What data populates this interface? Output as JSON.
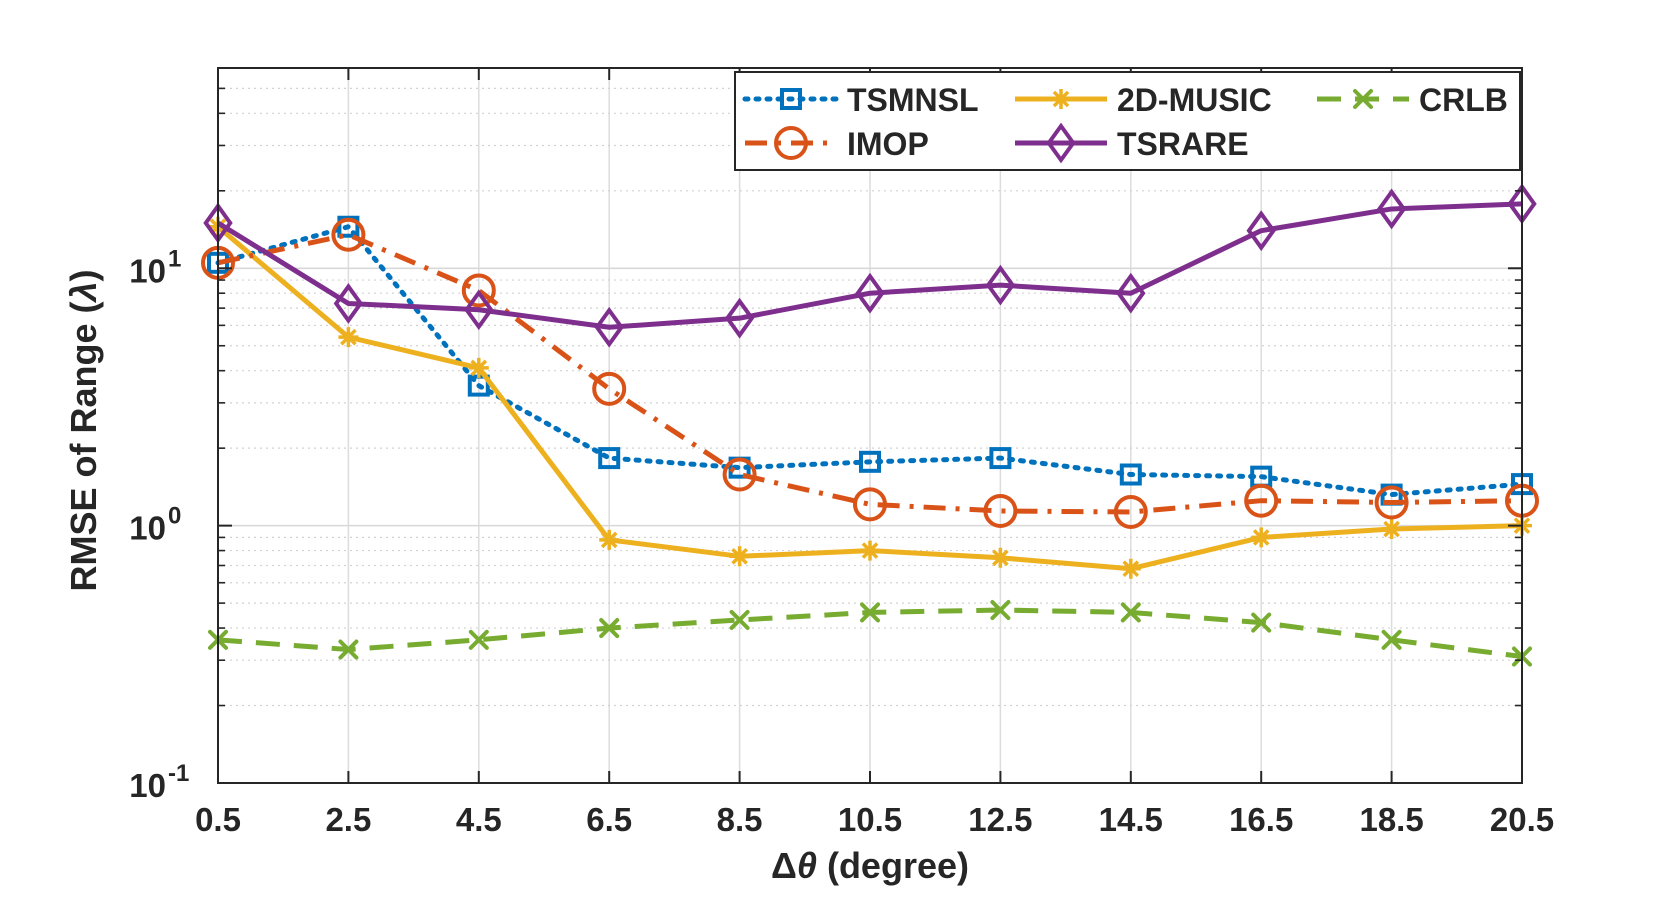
{
  "chart_data": {
    "type": "line",
    "title": "",
    "xlabel": "Δθ (degree)",
    "xlabel_parts": {
      "symbol": "Δ",
      "theta": "θ",
      "rest": " (degree)"
    },
    "ylabel": "RMSE of Range (λ)",
    "ylabel_parts": {
      "prefix": "RMSE of Range (",
      "lambda": "λ",
      "suffix": ")"
    },
    "yscale": "log",
    "ylim": [
      0.1,
      60
    ],
    "xlim": [
      0.5,
      20.5
    ],
    "x": [
      0.5,
      2.5,
      4.5,
      6.5,
      8.5,
      10.5,
      12.5,
      14.5,
      16.5,
      18.5,
      20.5
    ],
    "x_tick_labels": [
      "0.5",
      "2.5",
      "4.5",
      "6.5",
      "8.5",
      "10.5",
      "12.5",
      "14.5",
      "16.5",
      "18.5",
      "20.5"
    ],
    "y_ticks": [
      {
        "value": 0.1,
        "base": "10",
        "exp": "-1"
      },
      {
        "value": 1,
        "base": "10",
        "exp": "0"
      },
      {
        "value": 10,
        "base": "10",
        "exp": "1"
      }
    ],
    "grid": true,
    "legend_position": "top-right",
    "series": [
      {
        "name": "TSMNSL",
        "color": "#0072BD",
        "line": "dotted",
        "marker": "square",
        "values": [
          10.5,
          14.5,
          3.5,
          1.83,
          1.68,
          1.77,
          1.83,
          1.58,
          1.55,
          1.32,
          1.45
        ]
      },
      {
        "name": "2D-MUSIC",
        "color": "#EDB120",
        "line": "solid",
        "marker": "asterisk",
        "values": [
          14.5,
          5.4,
          4.1,
          0.88,
          0.76,
          0.8,
          0.75,
          0.68,
          0.9,
          0.97,
          1.0
        ]
      },
      {
        "name": "CRLB",
        "color": "#77AC30",
        "line": "dashed",
        "marker": "x",
        "values": [
          0.36,
          0.33,
          0.36,
          0.4,
          0.43,
          0.46,
          0.47,
          0.46,
          0.42,
          0.36,
          0.31
        ]
      },
      {
        "name": "IMOP",
        "color": "#D95319",
        "line": "dashdot",
        "marker": "circle",
        "values": [
          10.5,
          13.5,
          8.2,
          3.4,
          1.58,
          1.21,
          1.14,
          1.13,
          1.25,
          1.23,
          1.25
        ]
      },
      {
        "name": "TSRARE",
        "color": "#7E2F8E",
        "line": "solid",
        "marker": "diamond",
        "values": [
          15.0,
          7.3,
          6.9,
          5.9,
          6.4,
          8.0,
          8.6,
          8.0,
          14.0,
          17.0,
          17.8
        ]
      }
    ]
  }
}
